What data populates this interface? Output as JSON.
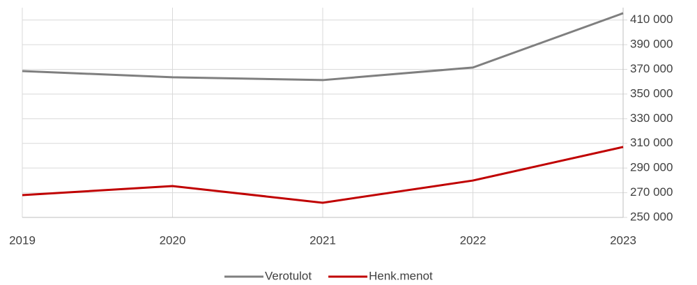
{
  "chart_data": {
    "type": "line",
    "categories": [
      "2019",
      "2020",
      "2021",
      "2022",
      "2023"
    ],
    "series": [
      {
        "name": "Verotulot",
        "color": "#7f7f7f",
        "values": [
          368600,
          363600,
          361300,
          371500,
          415500
        ]
      },
      {
        "name": "Henk.menot",
        "color": "#c00000",
        "values": [
          268100,
          275400,
          261900,
          279900,
          307100
        ]
      }
    ],
    "ylim": [
      250000,
      420000
    ],
    "yticks": [
      {
        "value": 250000,
        "label": "250 000"
      },
      {
        "value": 270000,
        "label": "270 000"
      },
      {
        "value": 290000,
        "label": "290 000"
      },
      {
        "value": 310000,
        "label": "310 000"
      },
      {
        "value": 330000,
        "label": "330 000"
      },
      {
        "value": 350000,
        "label": "350 000"
      },
      {
        "value": 370000,
        "label": "370 000"
      },
      {
        "value": 390000,
        "label": "390 000"
      },
      {
        "value": 410000,
        "label": "410 000"
      }
    ],
    "grid": true,
    "legend": "bottom"
  }
}
